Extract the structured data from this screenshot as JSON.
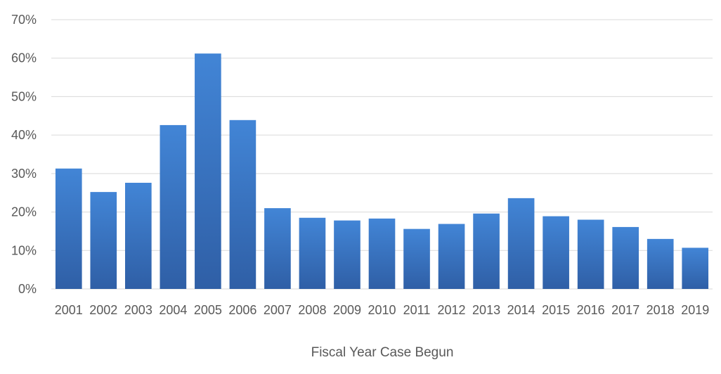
{
  "chart_data": {
    "type": "bar",
    "title": "",
    "xlabel": "Fiscal Year Case Begun",
    "ylabel": "",
    "categories": [
      "2001",
      "2002",
      "2003",
      "2004",
      "2005",
      "2006",
      "2007",
      "2008",
      "2009",
      "2010",
      "2011",
      "2012",
      "2013",
      "2014",
      "2015",
      "2016",
      "2017",
      "2018",
      "2019"
    ],
    "values": [
      31.3,
      25.2,
      27.6,
      42.6,
      61.2,
      43.9,
      21.0,
      18.5,
      17.8,
      18.3,
      15.6,
      16.9,
      19.6,
      23.6,
      18.9,
      18.0,
      16.1,
      13.0,
      10.7
    ],
    "ylim": [
      0,
      70
    ],
    "yticks": [
      {
        "value": 0,
        "label": "0%"
      },
      {
        "value": 10,
        "label": "10%"
      },
      {
        "value": 20,
        "label": "20%"
      },
      {
        "value": 30,
        "label": "30%"
      },
      {
        "value": 40,
        "label": "40%"
      },
      {
        "value": 50,
        "label": "50%"
      },
      {
        "value": 60,
        "label": "60%"
      },
      {
        "value": 70,
        "label": "70%"
      }
    ],
    "grid": true,
    "legend": "none",
    "colors": {
      "bar_top": "#4285d6",
      "bar_bottom": "#2f5fa6",
      "grid": "#d9d9d9",
      "text": "#595959"
    }
  }
}
